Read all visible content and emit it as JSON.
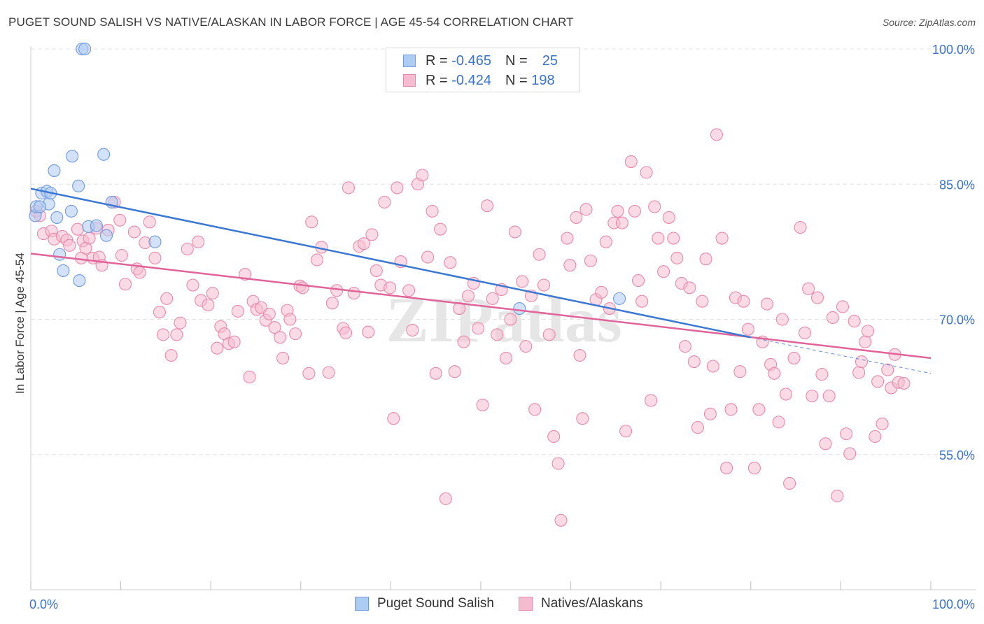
{
  "title": "PUGET SOUND SALISH VS NATIVE/ALASKAN IN LABOR FORCE | AGE 45-54 CORRELATION CHART",
  "source": "Source: ZipAtlas.com",
  "watermark": "ZIPatlas",
  "legend": {
    "rows": [
      {
        "r_label": "R =",
        "r_value": "-0.465",
        "n_label": "N =",
        "n_value": "25"
      },
      {
        "r_label": "R =",
        "r_value": "-0.424",
        "n_label": "N =",
        "n_value": "198"
      }
    ]
  },
  "colors": {
    "blue_fill": "#aecbf2",
    "blue_stroke": "#6f9be0",
    "blue_line": "#3a78d4",
    "pink_fill": "#f5bccf",
    "pink_stroke": "#e88aab",
    "pink_line": "#e0649a",
    "axis_text": "#3b73c9",
    "grid": "#e4e4e4"
  },
  "chart_data": {
    "type": "scatter",
    "title": "PUGET SOUND SALISH VS NATIVE/ALASKAN IN LABOR FORCE | AGE 45-54 CORRELATION CHART",
    "xlabel": "",
    "ylabel": "In Labor Force | Age 45-54",
    "xlim": [
      0,
      100
    ],
    "ylim": [
      40,
      100
    ],
    "x_tick_labels": [
      "0.0%",
      "100.0%"
    ],
    "y_ticks": [
      55,
      70,
      85,
      100
    ],
    "y_tick_labels": [
      "55.0%",
      "70.0%",
      "85.0%",
      "100.0%"
    ],
    "series": [
      {
        "name": "Puget Sound Salish",
        "trend": {
          "x": [
            0,
            80
          ],
          "y": [
            84.5,
            68.0
          ],
          "dashed_to": [
            100,
            64.0
          ]
        },
        "points": [
          [
            0.5,
            81.5
          ],
          [
            0.6,
            82.5
          ],
          [
            1.2,
            84.0
          ],
          [
            1.8,
            84.2
          ],
          [
            2.0,
            82.8
          ],
          [
            2.2,
            84.0
          ],
          [
            2.6,
            86.5
          ],
          [
            2.9,
            81.3
          ],
          [
            3.2,
            77.2
          ],
          [
            3.6,
            75.4
          ],
          [
            4.5,
            82.0
          ],
          [
            4.6,
            88.1
          ],
          [
            5.3,
            84.8
          ],
          [
            5.4,
            74.3
          ],
          [
            5.7,
            100.0
          ],
          [
            6.0,
            100.0
          ],
          [
            6.4,
            80.3
          ],
          [
            7.3,
            80.4
          ],
          [
            8.1,
            88.3
          ],
          [
            8.4,
            79.3
          ],
          [
            9.0,
            83.0
          ],
          [
            13.8,
            78.6
          ],
          [
            54.3,
            71.2
          ],
          [
            65.4,
            72.3
          ],
          [
            1.0,
            82.5
          ]
        ]
      },
      {
        "name": "Natives/Alaskans",
        "trend": {
          "x": [
            0,
            100
          ],
          "y": [
            77.3,
            65.7
          ]
        },
        "points": [
          [
            0.6,
            82.0
          ],
          [
            1.0,
            81.5
          ],
          [
            1.4,
            79.5
          ],
          [
            2.3,
            79.8
          ],
          [
            2.6,
            78.9
          ],
          [
            3.5,
            79.2
          ],
          [
            4.0,
            78.8
          ],
          [
            4.3,
            78.2
          ],
          [
            5.2,
            80.0
          ],
          [
            5.6,
            76.8
          ],
          [
            5.8,
            78.7
          ],
          [
            6.1,
            77.9
          ],
          [
            6.5,
            79.0
          ],
          [
            6.9,
            76.8
          ],
          [
            7.3,
            80.1
          ],
          [
            7.6,
            76.9
          ],
          [
            7.9,
            76.0
          ],
          [
            8.6,
            79.9
          ],
          [
            9.3,
            83.0
          ],
          [
            9.9,
            81.0
          ],
          [
            10.1,
            77.1
          ],
          [
            10.5,
            73.9
          ],
          [
            11.5,
            79.7
          ],
          [
            11.8,
            75.6
          ],
          [
            12.1,
            75.2
          ],
          [
            12.7,
            78.5
          ],
          [
            13.2,
            80.8
          ],
          [
            13.8,
            76.8
          ],
          [
            14.3,
            70.8
          ],
          [
            14.7,
            68.3
          ],
          [
            15.1,
            72.3
          ],
          [
            15.6,
            66.0
          ],
          [
            16.2,
            68.3
          ],
          [
            16.6,
            69.6
          ],
          [
            17.4,
            77.8
          ],
          [
            18.0,
            73.8
          ],
          [
            18.6,
            78.6
          ],
          [
            18.9,
            72.1
          ],
          [
            19.7,
            71.6
          ],
          [
            20.2,
            72.9
          ],
          [
            20.7,
            66.8
          ],
          [
            21.1,
            69.2
          ],
          [
            21.5,
            68.4
          ],
          [
            22.0,
            67.3
          ],
          [
            22.6,
            67.5
          ],
          [
            23.0,
            70.9
          ],
          [
            23.8,
            75.0
          ],
          [
            24.3,
            63.6
          ],
          [
            24.7,
            72.0
          ],
          [
            25.1,
            71.1
          ],
          [
            25.6,
            71.3
          ],
          [
            26.1,
            69.9
          ],
          [
            26.5,
            70.6
          ],
          [
            27.1,
            69.1
          ],
          [
            27.7,
            68.0
          ],
          [
            28.0,
            65.7
          ],
          [
            28.5,
            71.0
          ],
          [
            28.8,
            70.0
          ],
          [
            29.4,
            68.4
          ],
          [
            29.9,
            73.7
          ],
          [
            30.2,
            73.5
          ],
          [
            30.9,
            64.0
          ],
          [
            31.2,
            80.8
          ],
          [
            31.8,
            76.6
          ],
          [
            32.3,
            78.0
          ],
          [
            33.1,
            64.1
          ],
          [
            33.5,
            71.8
          ],
          [
            34.0,
            73.2
          ],
          [
            34.7,
            69.0
          ],
          [
            35.0,
            68.5
          ],
          [
            35.3,
            84.6
          ],
          [
            35.9,
            72.9
          ],
          [
            36.5,
            78.1
          ],
          [
            37.0,
            78.4
          ],
          [
            37.5,
            68.6
          ],
          [
            37.9,
            79.4
          ],
          [
            38.4,
            75.4
          ],
          [
            38.9,
            73.8
          ],
          [
            39.3,
            83.0
          ],
          [
            39.9,
            73.5
          ],
          [
            40.3,
            59.0
          ],
          [
            40.7,
            84.6
          ],
          [
            41.1,
            76.4
          ],
          [
            42.0,
            73.2
          ],
          [
            42.4,
            68.8
          ],
          [
            43.0,
            85.0
          ],
          [
            43.5,
            86.0
          ],
          [
            44.1,
            76.9
          ],
          [
            44.6,
            82.0
          ],
          [
            45.0,
            64.0
          ],
          [
            45.5,
            80.0
          ],
          [
            46.1,
            50.1
          ],
          [
            46.6,
            76.3
          ],
          [
            47.1,
            64.2
          ],
          [
            47.6,
            71.2
          ],
          [
            48.1,
            67.5
          ],
          [
            48.6,
            72.6
          ],
          [
            49.2,
            74.0
          ],
          [
            49.7,
            69.0
          ],
          [
            50.2,
            60.5
          ],
          [
            50.7,
            82.6
          ],
          [
            51.3,
            72.3
          ],
          [
            51.8,
            68.3
          ],
          [
            52.3,
            73.3
          ],
          [
            52.8,
            65.7
          ],
          [
            53.3,
            70.0
          ],
          [
            53.8,
            79.7
          ],
          [
            54.6,
            74.2
          ],
          [
            55.0,
            67.0
          ],
          [
            55.6,
            72.6
          ],
          [
            56.0,
            60.0
          ],
          [
            56.5,
            77.2
          ],
          [
            57.0,
            73.8
          ],
          [
            57.6,
            68.3
          ],
          [
            58.1,
            57.0
          ],
          [
            58.6,
            54.0
          ],
          [
            58.9,
            47.7
          ],
          [
            59.6,
            79.0
          ],
          [
            59.9,
            76.0
          ],
          [
            60.6,
            81.3
          ],
          [
            61.0,
            66.0
          ],
          [
            61.3,
            59.0
          ],
          [
            61.7,
            82.2
          ],
          [
            62.2,
            76.5
          ],
          [
            62.8,
            72.2
          ],
          [
            63.4,
            73.0
          ],
          [
            63.9,
            78.6
          ],
          [
            64.3,
            71.2
          ],
          [
            64.8,
            80.7
          ],
          [
            65.2,
            82.0
          ],
          [
            65.7,
            80.7
          ],
          [
            66.1,
            57.6
          ],
          [
            66.7,
            87.5
          ],
          [
            67.1,
            82.0
          ],
          [
            67.5,
            74.3
          ],
          [
            67.9,
            72.0
          ],
          [
            68.4,
            86.3
          ],
          [
            68.9,
            61.0
          ],
          [
            69.3,
            82.5
          ],
          [
            69.7,
            79.0
          ],
          [
            70.3,
            75.3
          ],
          [
            70.9,
            81.3
          ],
          [
            71.4,
            79.0
          ],
          [
            71.8,
            76.8
          ],
          [
            72.3,
            74.0
          ],
          [
            72.7,
            67.0
          ],
          [
            73.2,
            73.5
          ],
          [
            73.7,
            65.3
          ],
          [
            74.1,
            58.0
          ],
          [
            74.6,
            72.0
          ],
          [
            75.0,
            76.7
          ],
          [
            75.5,
            59.5
          ],
          [
            76.2,
            90.5
          ],
          [
            76.8,
            79.0
          ],
          [
            77.3,
            53.5
          ],
          [
            77.8,
            60.0
          ],
          [
            78.3,
            72.4
          ],
          [
            78.8,
            64.2
          ],
          [
            79.2,
            72.0
          ],
          [
            79.7,
            68.9
          ],
          [
            80.4,
            53.5
          ],
          [
            80.9,
            60.0
          ],
          [
            81.3,
            67.5
          ],
          [
            81.8,
            71.7
          ],
          [
            82.2,
            65.0
          ],
          [
            82.6,
            64.0
          ],
          [
            83.1,
            58.6
          ],
          [
            83.5,
            70.0
          ],
          [
            83.9,
            61.7
          ],
          [
            84.3,
            51.8
          ],
          [
            84.8,
            65.7
          ],
          [
            85.5,
            80.2
          ],
          [
            86.0,
            68.5
          ],
          [
            86.4,
            73.4
          ],
          [
            86.8,
            61.5
          ],
          [
            87.4,
            72.4
          ],
          [
            87.9,
            63.9
          ],
          [
            88.3,
            56.2
          ],
          [
            88.7,
            61.5
          ],
          [
            89.1,
            70.2
          ],
          [
            89.6,
            50.4
          ],
          [
            90.2,
            71.4
          ],
          [
            90.6,
            57.3
          ],
          [
            91.0,
            55.1
          ],
          [
            91.5,
            69.8
          ],
          [
            92.0,
            64.1
          ],
          [
            92.3,
            65.3
          ],
          [
            92.7,
            67.5
          ],
          [
            93.0,
            68.7
          ],
          [
            93.8,
            57.0
          ],
          [
            94.1,
            63.1
          ],
          [
            94.6,
            58.4
          ],
          [
            95.2,
            64.4
          ],
          [
            95.6,
            62.4
          ],
          [
            96.0,
            66.1
          ],
          [
            96.4,
            63.0
          ],
          [
            97.0,
            62.9
          ],
          [
            75.8,
            64.8
          ]
        ]
      }
    ]
  },
  "bottom_legend": [
    "Puget Sound Salish",
    "Natives/Alaskans"
  ]
}
